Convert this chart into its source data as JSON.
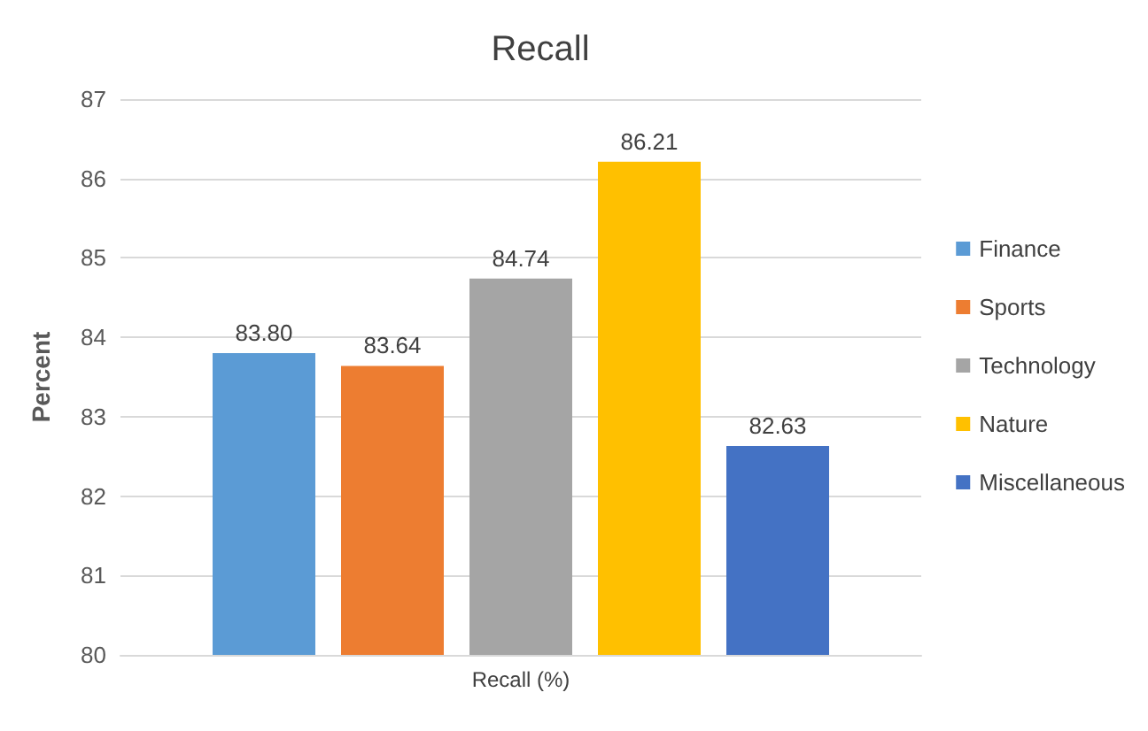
{
  "chart_data": {
    "type": "bar",
    "title": "Recall",
    "ylabel": "Percent",
    "categories": [
      "Recall (%)"
    ],
    "series": [
      {
        "name": "Finance",
        "color": "#5b9bd5",
        "values": [
          83.8
        ],
        "value_labels": [
          "83.80"
        ]
      },
      {
        "name": "Sports",
        "color": "#ed7d31",
        "values": [
          83.64
        ],
        "value_labels": [
          "83.64"
        ]
      },
      {
        "name": "Technology",
        "color": "#a5a5a5",
        "values": [
          84.74
        ],
        "value_labels": [
          "84.74"
        ]
      },
      {
        "name": "Nature",
        "color": "#ffc000",
        "values": [
          86.21
        ],
        "value_labels": [
          "86.21"
        ]
      },
      {
        "name": "Miscellaneous",
        "color": "#4472c4",
        "values": [
          82.63
        ],
        "value_labels": [
          "82.63"
        ]
      }
    ],
    "ylim": [
      80,
      87
    ],
    "yticks": [
      80,
      81,
      82,
      83,
      84,
      85,
      86,
      87
    ],
    "grid": "y",
    "legend": "right"
  }
}
